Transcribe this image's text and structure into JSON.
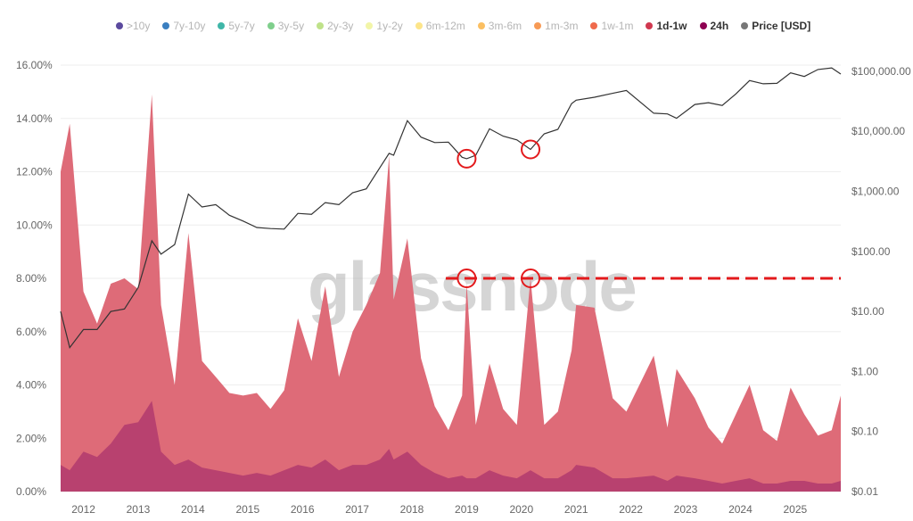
{
  "chart_data": {
    "type": "area",
    "stacked": true,
    "legend_position": "top",
    "legend": [
      {
        "label": ">10y",
        "color": "#5b4a9e",
        "active": false
      },
      {
        "label": "7y-10y",
        "color": "#3a7fc0",
        "active": false
      },
      {
        "label": "5y-7y",
        "color": "#3fb6a8",
        "active": false
      },
      {
        "label": "3y-5y",
        "color": "#7fcf8c",
        "active": false
      },
      {
        "label": "2y-3y",
        "color": "#bfe28a",
        "active": false
      },
      {
        "label": "1y-2y",
        "color": "#f2f5a8",
        "active": false
      },
      {
        "label": "6m-12m",
        "color": "#fde58a",
        "active": false
      },
      {
        "label": "3m-6m",
        "color": "#fbbf62",
        "active": false
      },
      {
        "label": "1m-3m",
        "color": "#f79a55",
        "active": false
      },
      {
        "label": "1w-1m",
        "color": "#ef6a4c",
        "active": false
      },
      {
        "label": "1d-1w",
        "color": "#d0384f",
        "active": true
      },
      {
        "label": "24h",
        "color": "#8e0152",
        "active": true
      },
      {
        "label": "Price [USD]",
        "color": "#777777",
        "active": true
      }
    ],
    "grid": true,
    "x_ticks": [
      "2012",
      "2013",
      "2014",
      "2015",
      "2016",
      "2017",
      "2018",
      "2019",
      "2020",
      "2021",
      "2022",
      "2023",
      "2024",
      "2025"
    ],
    "x_range": [
      "2011-08",
      "2025-11"
    ],
    "y_left": {
      "ticks": [
        "0.00%",
        "2.00%",
        "4.00%",
        "6.00%",
        "8.00%",
        "10.00%",
        "12.00%",
        "14.00%",
        "16.00%"
      ],
      "range": [
        0,
        16
      ]
    },
    "y_right": {
      "scale": "log",
      "ticks": [
        "$0.01",
        "$0.10",
        "$1.00",
        "$10.00",
        "$100.00",
        "$1,000.00",
        "$10,000.00",
        "$100,000.00"
      ],
      "range": [
        0.01,
        100000
      ]
    },
    "x": [
      "2011-08",
      "2011-10",
      "2012-01",
      "2012-04",
      "2012-07",
      "2012-10",
      "2013-01",
      "2013-04",
      "2013-06",
      "2013-09",
      "2013-12",
      "2014-03",
      "2014-06",
      "2014-09",
      "2014-12",
      "2015-03",
      "2015-06",
      "2015-09",
      "2015-12",
      "2016-03",
      "2016-06",
      "2016-09",
      "2016-12",
      "2017-03",
      "2017-06",
      "2017-08",
      "2017-09",
      "2017-12",
      "2018-03",
      "2018-06",
      "2018-09",
      "2018-12",
      "2019-01",
      "2019-03",
      "2019-06",
      "2019-09",
      "2019-12",
      "2020-03",
      "2020-06",
      "2020-09",
      "2020-12",
      "2021-01",
      "2021-05",
      "2021-09",
      "2021-12",
      "2022-06",
      "2022-09",
      "2022-11",
      "2023-03",
      "2023-06",
      "2023-09",
      "2023-12",
      "2024-03",
      "2024-06",
      "2024-09",
      "2024-12",
      "2025-03",
      "2025-06",
      "2025-09",
      "2025-11"
    ],
    "series": [
      {
        "name": "24h",
        "color": "#b8416f",
        "values": [
          1.0,
          0.8,
          1.5,
          1.3,
          1.8,
          2.5,
          2.6,
          3.4,
          1.5,
          1.0,
          1.2,
          0.9,
          0.8,
          0.7,
          0.6,
          0.7,
          0.6,
          0.8,
          1.0,
          0.9,
          1.2,
          0.8,
          1.0,
          1.0,
          1.2,
          1.6,
          1.2,
          1.5,
          1.0,
          0.7,
          0.5,
          0.6,
          0.5,
          0.5,
          0.8,
          0.6,
          0.5,
          0.8,
          0.5,
          0.5,
          0.8,
          1.0,
          0.9,
          0.5,
          0.5,
          0.6,
          0.4,
          0.6,
          0.5,
          0.4,
          0.3,
          0.4,
          0.5,
          0.3,
          0.3,
          0.4,
          0.4,
          0.3,
          0.3,
          0.4
        ]
      },
      {
        "name": "1d-1w",
        "color": "#de6b78",
        "values": [
          11.0,
          13.0,
          6.0,
          5.0,
          6.0,
          5.5,
          5.0,
          11.5,
          5.5,
          3.0,
          8.5,
          4.0,
          3.5,
          3.0,
          3.0,
          3.0,
          2.5,
          3.0,
          5.5,
          4.0,
          6.5,
          3.5,
          5.0,
          6.0,
          7.0,
          11.0,
          6.0,
          8.0,
          4.0,
          2.5,
          1.8,
          3.0,
          7.3,
          2.0,
          4.0,
          2.5,
          2.0,
          7.2,
          2.0,
          2.5,
          4.5,
          6.0,
          6.0,
          3.0,
          2.5,
          4.5,
          2.0,
          4.0,
          3.0,
          2.0,
          1.5,
          2.5,
          3.5,
          2.0,
          1.6,
          3.5,
          2.5,
          1.8,
          2.0,
          3.2
        ]
      },
      {
        "name": "Price [USD]",
        "axis": "right",
        "color": "#333333",
        "values": [
          10,
          2.5,
          5,
          5,
          10,
          11,
          25,
          150,
          90,
          130,
          900,
          550,
          600,
          400,
          320,
          250,
          240,
          235,
          430,
          415,
          650,
          600,
          950,
          1100,
          2500,
          4300,
          4000,
          15000,
          8000,
          6500,
          6600,
          3700,
          3500,
          4000,
          11000,
          8300,
          7200,
          5000,
          9100,
          10800,
          29000,
          33000,
          37000,
          43000,
          48000,
          20000,
          19500,
          16500,
          28000,
          30000,
          27000,
          42000,
          70000,
          62000,
          63000,
          94000,
          82000,
          107000,
          114000,
          90000
        ]
      }
    ],
    "annotations": {
      "color": "#e31a1c",
      "reference_line_pct": 8.0,
      "circled_dates": [
        "2019-01",
        "2020-03"
      ]
    },
    "watermark": "glassnode"
  }
}
